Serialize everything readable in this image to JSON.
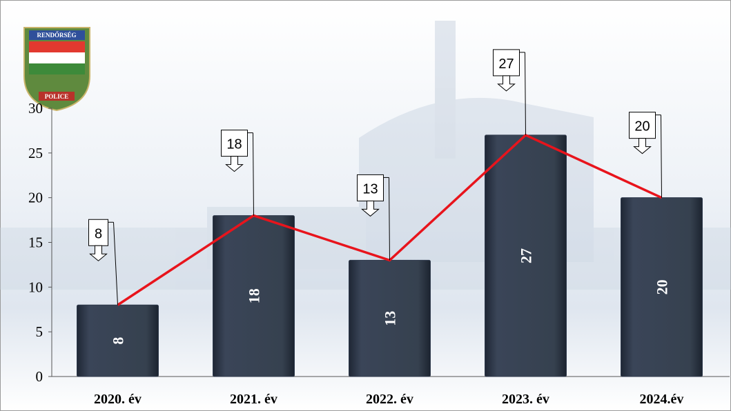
{
  "logo": {
    "top": "RENDŐRSÉG",
    "bottom": "POLICE"
  },
  "chart_data": {
    "type": "bar",
    "categories": [
      "2020. év",
      "2021. év",
      "2022. év",
      "2023. év",
      "2024.év"
    ],
    "series": [
      {
        "type": "bar",
        "color": "#2f3a4c",
        "values": [
          8,
          18,
          13,
          27,
          20
        ]
      },
      {
        "type": "line",
        "color": "#e8141c",
        "values": [
          8,
          18,
          13,
          27,
          20
        ]
      }
    ],
    "ylim": [
      0,
      30
    ],
    "yticks": [
      0,
      5,
      10,
      15,
      20,
      25,
      30
    ],
    "grid": false
  }
}
